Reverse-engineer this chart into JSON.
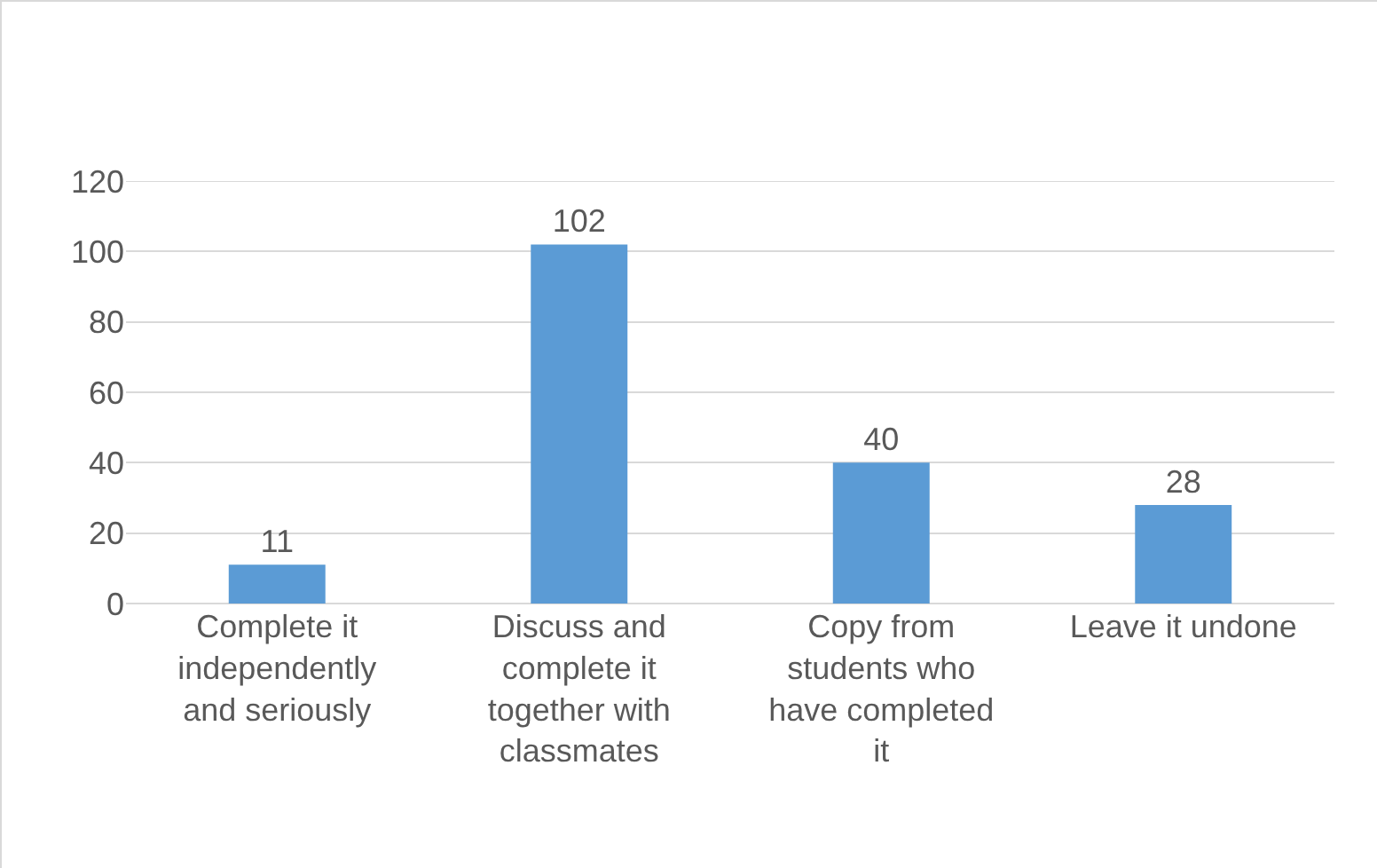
{
  "chart_data": {
    "type": "bar",
    "categories": [
      "Complete it independently and seriously",
      "Discuss and complete it together with classmates",
      "Copy from students who have completed it",
      "Leave it undone"
    ],
    "values": [
      11,
      102,
      40,
      28
    ],
    "color": "#5b9bd5",
    "ylim": [
      0,
      120
    ],
    "yticks": [
      0,
      20,
      40,
      60,
      80,
      100,
      120
    ],
    "grid": "y",
    "data_labels": true
  }
}
